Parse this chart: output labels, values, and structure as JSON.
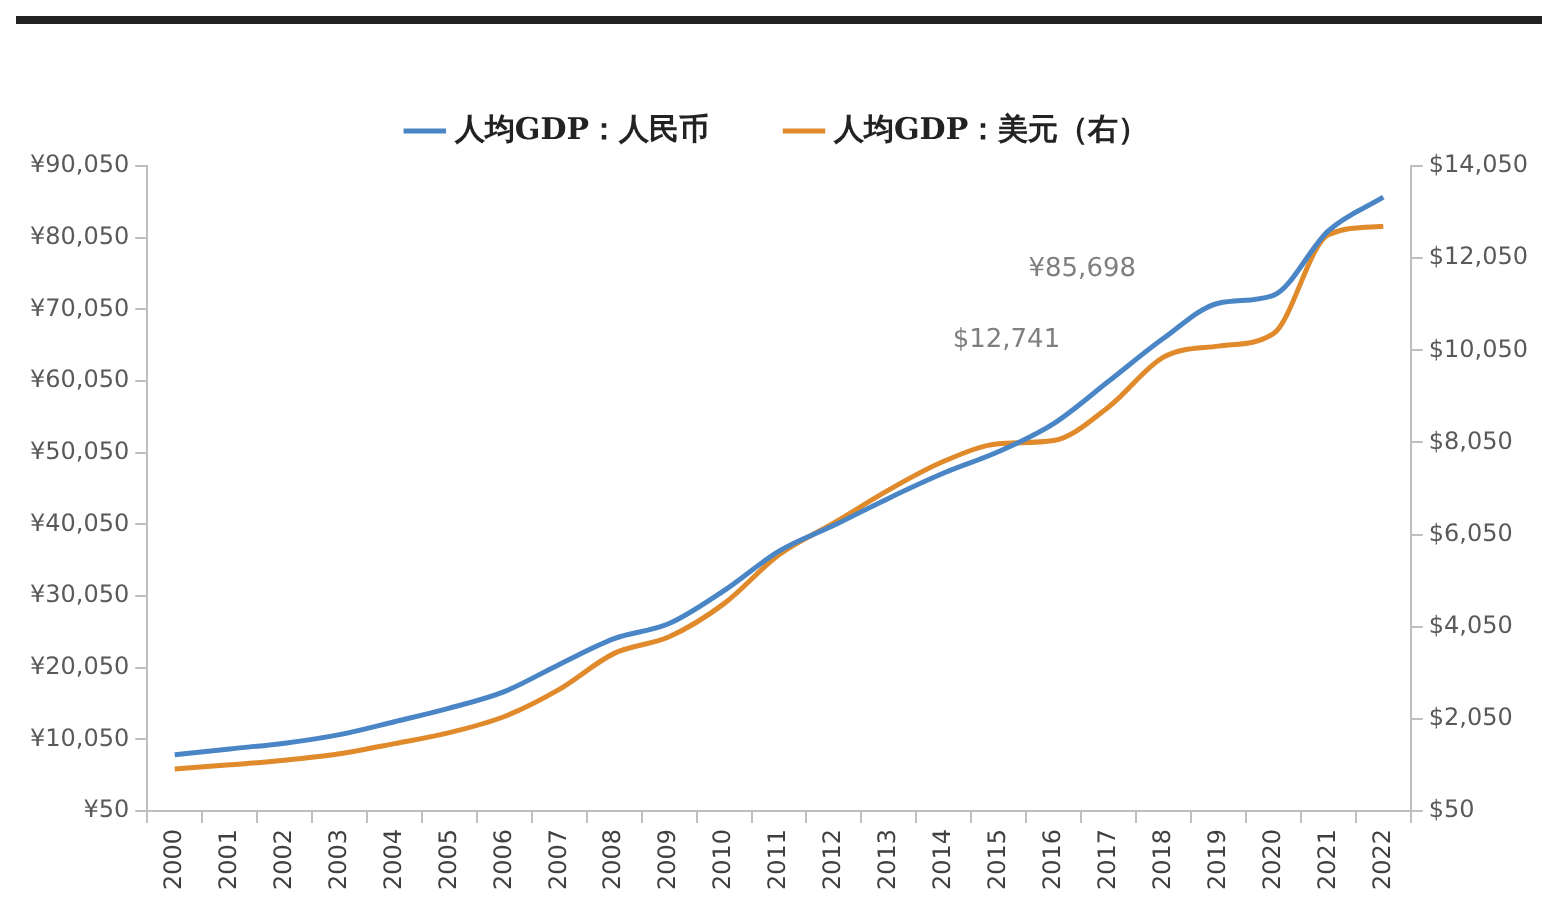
{
  "chart_data": {
    "type": "line",
    "categories": [
      "2000",
      "2001",
      "2002",
      "2003",
      "2004",
      "2005",
      "2006",
      "2007",
      "2008",
      "2009",
      "2010",
      "2011",
      "2012",
      "2013",
      "2014",
      "2015",
      "2016",
      "2017",
      "2018",
      "2019",
      "2020",
      "2021",
      "2022"
    ],
    "series": [
      {
        "name": "人均GDP：人民币",
        "color": "#4a86c6",
        "values": [
          7900,
          8700,
          9500,
          10700,
          12500,
          14400,
          16700,
          20500,
          24100,
          26200,
          30800,
          36300,
          39900,
          43700,
          47200,
          50200,
          54100,
          60000,
          66000,
          70900,
          72000,
          81000,
          85698
        ]
      },
      {
        "name": "人均GDP：美元（右）",
        "color": "#e08a2c",
        "axis": "y2",
        "values": [
          960,
          1050,
          1150,
          1290,
          1510,
          1750,
          2100,
          2690,
          3470,
          3830,
          4550,
          5610,
          6300,
          7020,
          7640,
          8020,
          8090,
          8820,
          9900,
          10140,
          10410,
          12560,
          12741
        ]
      }
    ],
    "ylim": [
      50,
      90050
    ],
    "yticks": [
      {
        "value": 50,
        "label": "¥50"
      },
      {
        "value": 10050,
        "label": "¥10,050"
      },
      {
        "value": 20050,
        "label": "¥20,050"
      },
      {
        "value": 30050,
        "label": "¥30,050"
      },
      {
        "value": 40050,
        "label": "¥40,050"
      },
      {
        "value": 50050,
        "label": "¥50,050"
      },
      {
        "value": 60050,
        "label": "¥60,050"
      },
      {
        "value": 70050,
        "label": "¥70,050"
      },
      {
        "value": 80050,
        "label": "¥80,050"
      },
      {
        "value": 90050,
        "label": "¥90,050"
      }
    ],
    "y2lim": [
      50,
      14050
    ],
    "y2ticks": [
      {
        "value": 50,
        "label": "$50"
      },
      {
        "value": 2050,
        "label": "$2,050"
      },
      {
        "value": 4050,
        "label": "$4,050"
      },
      {
        "value": 6050,
        "label": "$6,050"
      },
      {
        "value": 8050,
        "label": "$8,050"
      },
      {
        "value": 10050,
        "label": "$10,050"
      },
      {
        "value": 12050,
        "label": "$12,050"
      },
      {
        "value": 14050,
        "label": "$14,050"
      }
    ],
    "annotations": [
      "¥85,698",
      "$12,741"
    ],
    "legend": "top",
    "grid": false,
    "marker": "none",
    "line_style": "solid"
  }
}
